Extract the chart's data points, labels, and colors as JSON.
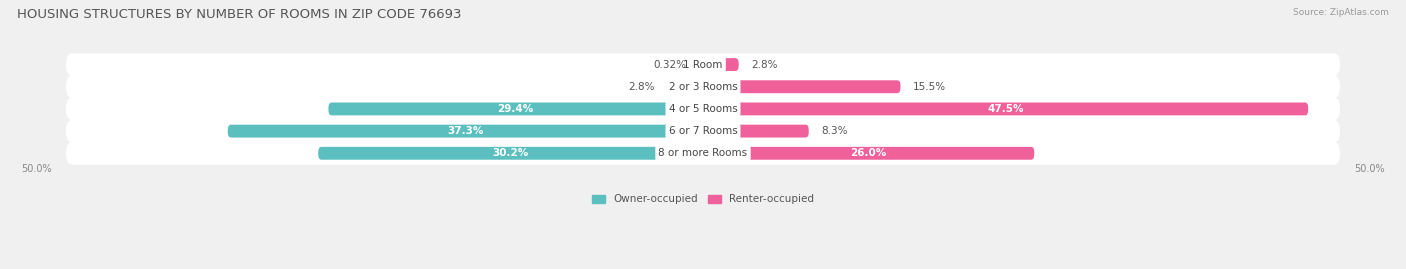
{
  "title": "HOUSING STRUCTURES BY NUMBER OF ROOMS IN ZIP CODE 76693",
  "source": "Source: ZipAtlas.com",
  "categories": [
    "1 Room",
    "2 or 3 Rooms",
    "4 or 5 Rooms",
    "6 or 7 Rooms",
    "8 or more Rooms"
  ],
  "owner_values": [
    0.32,
    2.8,
    29.4,
    37.3,
    30.2
  ],
  "renter_values": [
    2.8,
    15.5,
    47.5,
    8.3,
    26.0
  ],
  "owner_color": "#5BBFBF",
  "renter_color": "#F0609A",
  "owner_color_light": "#A8DCDC",
  "renter_color_light": "#F4A0C0",
  "owner_label": "Owner-occupied",
  "renter_label": "Renter-occupied",
  "axis_max": 50.0,
  "axis_label_left": "50.0%",
  "axis_label_right": "50.0%",
  "bg_color": "#f0f0f0",
  "row_bg_color": "#ffffff",
  "title_fontsize": 9.5,
  "label_fontsize": 7.5,
  "category_fontsize": 7.5,
  "source_fontsize": 6.5
}
